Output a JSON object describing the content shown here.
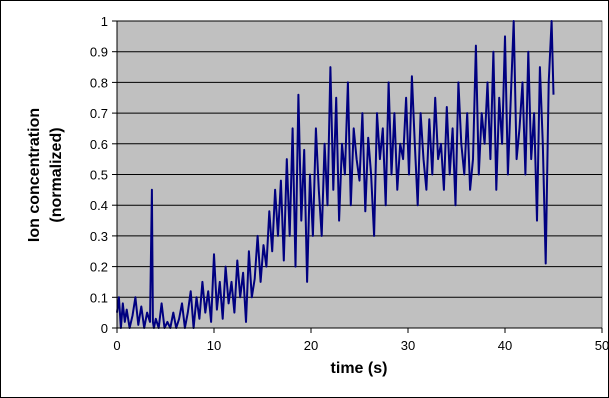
{
  "chart_data": {
    "type": "line",
    "title": "",
    "xlabel": "time (s)",
    "ylabel_line1": "Ion concentration",
    "ylabel_line2": "(normalized)",
    "xlim": [
      0,
      50
    ],
    "ylim": [
      0,
      1
    ],
    "x_ticks": [
      0,
      10,
      20,
      30,
      40,
      50
    ],
    "y_ticks": [
      0,
      0.1,
      0.2,
      0.3,
      0.4,
      0.5,
      0.6,
      0.7,
      0.8,
      0.9,
      1
    ],
    "grid": "horizontal",
    "legend": "none",
    "plot_background": "#c0c0c0",
    "line_color": "#000080",
    "series": [
      {
        "x": [
          0,
          0.2,
          0.4,
          0.6,
          0.8,
          1,
          1.3,
          1.6,
          1.9,
          2.2,
          2.5,
          2.8,
          3.1,
          3.4,
          3.6,
          3.7,
          3.8,
          4,
          4.3,
          4.6,
          4.9,
          5.2,
          5.5,
          5.8,
          6.1,
          6.4,
          6.7,
          7,
          7.3,
          7.6,
          7.9,
          8.2,
          8.5,
          8.8,
          9.1,
          9.4,
          9.7,
          10,
          10.3,
          10.6,
          10.9,
          11.2,
          11.5,
          11.8,
          12.1,
          12.4,
          12.7,
          13,
          13.3,
          13.6,
          13.9,
          14.2,
          14.5,
          14.8,
          15.1,
          15.4,
          15.7,
          16,
          16.3,
          16.6,
          16.9,
          17.2,
          17.5,
          17.8,
          18.1,
          18.4,
          18.7,
          19,
          19.3,
          19.6,
          19.9,
          20.2,
          20.5,
          20.8,
          21.1,
          21.4,
          21.7,
          22,
          22.3,
          22.6,
          22.9,
          23.2,
          23.5,
          23.8,
          24.1,
          24.4,
          24.7,
          25,
          25.3,
          25.6,
          25.9,
          26.2,
          26.5,
          26.8,
          27.1,
          27.4,
          27.7,
          28,
          28.3,
          28.6,
          28.9,
          29.2,
          29.5,
          29.8,
          30.1,
          30.4,
          30.7,
          31,
          31.3,
          31.6,
          31.9,
          32.2,
          32.5,
          32.8,
          33.1,
          33.4,
          33.7,
          34,
          34.3,
          34.6,
          34.9,
          35.2,
          35.5,
          35.8,
          36.1,
          36.4,
          36.7,
          37,
          37.3,
          37.6,
          37.9,
          38.2,
          38.5,
          38.8,
          39.1,
          39.4,
          39.7,
          40,
          40.3,
          40.6,
          40.9,
          41.2,
          41.5,
          41.8,
          42.1,
          42.4,
          42.7,
          43,
          43.3,
          43.6,
          43.9,
          44.2,
          44.5,
          44.8,
          45
        ],
        "y": [
          0.05,
          0.1,
          0,
          0.08,
          0.02,
          0.06,
          0,
          0.04,
          0.1,
          0.01,
          0.07,
          0,
          0.05,
          0.02,
          0.45,
          0.02,
          0,
          0.03,
          0,
          0.08,
          0,
          0.02,
          0,
          0.05,
          0,
          0.03,
          0.08,
          0,
          0.05,
          0.12,
          0,
          0.1,
          0.03,
          0.15,
          0.05,
          0.12,
          0.02,
          0.24,
          0.06,
          0.15,
          0.03,
          0.2,
          0.08,
          0.15,
          0.05,
          0.22,
          0.1,
          0.18,
          0.02,
          0.25,
          0.1,
          0.16,
          0.3,
          0.15,
          0.27,
          0.2,
          0.38,
          0.25,
          0.45,
          0.3,
          0.48,
          0.22,
          0.55,
          0.3,
          0.65,
          0.2,
          0.76,
          0.35,
          0.58,
          0.15,
          0.5,
          0.3,
          0.65,
          0.45,
          0.3,
          0.6,
          0.4,
          0.85,
          0.45,
          0.75,
          0.35,
          0.6,
          0.5,
          0.8,
          0.4,
          0.65,
          0.55,
          0.48,
          0.7,
          0.38,
          0.62,
          0.5,
          0.3,
          0.7,
          0.55,
          0.65,
          0.4,
          0.8,
          0.5,
          0.7,
          0.45,
          0.6,
          0.55,
          0.75,
          0.5,
          0.82,
          0.6,
          0.4,
          0.7,
          0.55,
          0.45,
          0.68,
          0.5,
          0.75,
          0.55,
          0.6,
          0.45,
          0.72,
          0.5,
          0.65,
          0.4,
          0.8,
          0.6,
          0.5,
          0.7,
          0.45,
          0.55,
          0.92,
          0.5,
          0.7,
          0.6,
          0.8,
          0.55,
          0.9,
          0.45,
          0.75,
          0.6,
          0.95,
          0.5,
          0.75,
          1,
          0.55,
          0.65,
          0.8,
          0.5,
          0.9,
          0.55,
          0.7,
          0.35,
          0.85,
          0.6,
          0.21,
          0.8,
          1,
          0.76
        ]
      }
    ]
  }
}
